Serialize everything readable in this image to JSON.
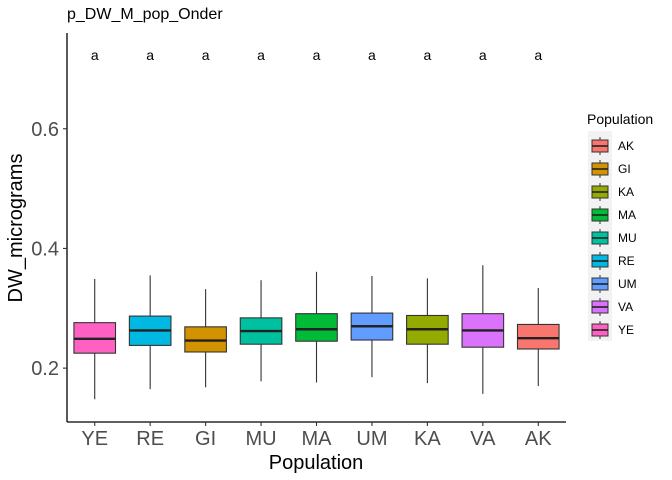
{
  "chart_data": {
    "type": "box",
    "title": "p_DW_M_pop_Onder",
    "xlabel": "Population",
    "ylabel": "DW_micrograms",
    "ylim": [
      0.11,
      0.76
    ],
    "yticks": [
      0.2,
      0.4,
      0.6
    ],
    "ytick_labels": [
      "0.2",
      "0.4",
      "0.6"
    ],
    "grid": false,
    "categories": [
      "YE",
      "RE",
      "GI",
      "MU",
      "MA",
      "UM",
      "KA",
      "VA",
      "AK"
    ],
    "boxes": [
      {
        "category": "YE",
        "whisker_low": 0.148,
        "q1": 0.225,
        "median": 0.249,
        "q3": 0.276,
        "whisker_high": 0.349,
        "color": "#FF61C3",
        "label": "a"
      },
      {
        "category": "RE",
        "whisker_low": 0.165,
        "q1": 0.238,
        "median": 0.263,
        "q3": 0.287,
        "whisker_high": 0.355,
        "color": "#00B9E3",
        "label": "a"
      },
      {
        "category": "GI",
        "whisker_low": 0.168,
        "q1": 0.227,
        "median": 0.246,
        "q3": 0.269,
        "whisker_high": 0.332,
        "color": "#D39200",
        "label": "a"
      },
      {
        "category": "MU",
        "whisker_low": 0.178,
        "q1": 0.24,
        "median": 0.262,
        "q3": 0.284,
        "whisker_high": 0.347,
        "color": "#00C19F",
        "label": "a"
      },
      {
        "category": "MA",
        "whisker_low": 0.176,
        "q1": 0.245,
        "median": 0.265,
        "q3": 0.291,
        "whisker_high": 0.361,
        "color": "#00BA38",
        "label": "a"
      },
      {
        "category": "UM",
        "whisker_low": 0.185,
        "q1": 0.247,
        "median": 0.27,
        "q3": 0.292,
        "whisker_high": 0.354,
        "color": "#619CFF",
        "label": "a"
      },
      {
        "category": "KA",
        "whisker_low": 0.175,
        "q1": 0.24,
        "median": 0.265,
        "q3": 0.288,
        "whisker_high": 0.35,
        "color": "#93AA00",
        "label": "a"
      },
      {
        "category": "VA",
        "whisker_low": 0.157,
        "q1": 0.235,
        "median": 0.263,
        "q3": 0.291,
        "whisker_high": 0.372,
        "color": "#DB72FB",
        "label": "a"
      },
      {
        "category": "AK",
        "whisker_low": 0.17,
        "q1": 0.232,
        "median": 0.25,
        "q3": 0.273,
        "whisker_high": 0.334,
        "color": "#F8766D",
        "label": "a"
      }
    ],
    "legend": {
      "title": "Population",
      "placement": "right",
      "entries": [
        {
          "label": "AK",
          "color": "#F8766D"
        },
        {
          "label": "GI",
          "color": "#D39200"
        },
        {
          "label": "KA",
          "color": "#93AA00"
        },
        {
          "label": "MA",
          "color": "#00BA38"
        },
        {
          "label": "MU",
          "color": "#00C19F"
        },
        {
          "label": "RE",
          "color": "#00B9E3"
        },
        {
          "label": "UM",
          "color": "#619CFF"
        },
        {
          "label": "VA",
          "color": "#DB72FB"
        },
        {
          "label": "YE",
          "color": "#FF61C3"
        }
      ]
    }
  }
}
